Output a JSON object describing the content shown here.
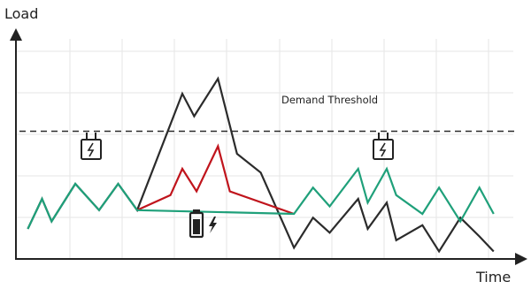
{
  "chart_data": {
    "type": "line",
    "xlabel": "Time",
    "ylabel": "Load",
    "annotations": {
      "threshold_label": "Demand Threshold"
    },
    "x": [
      0,
      1.2,
      2.5,
      4.8,
      6.5,
      8.0,
      9.5
    ],
    "series": [
      {
        "id": "grid_without_battery",
        "color": "#2b2b2b",
        "points": [
          [
            0,
            0.8
          ],
          [
            0.6,
            1.6
          ],
          [
            1.0,
            1.0
          ],
          [
            2.0,
            2.0
          ],
          [
            3.0,
            1.3
          ],
          [
            3.8,
            2.0
          ],
          [
            4.6,
            1.3
          ],
          [
            6.5,
            4.4
          ],
          [
            7.0,
            3.8
          ],
          [
            8.0,
            4.8
          ],
          [
            8.8,
            2.8
          ],
          [
            9.8,
            2.3
          ],
          [
            11.2,
            0.3
          ],
          [
            12.0,
            1.1
          ],
          [
            12.7,
            0.7
          ],
          [
            13.9,
            1.6
          ],
          [
            14.3,
            0.8
          ],
          [
            15.1,
            1.5
          ],
          [
            15.5,
            0.5
          ],
          [
            16.6,
            0.9
          ],
          [
            17.3,
            0.2
          ],
          [
            18.2,
            1.1
          ],
          [
            19.0,
            0.6
          ],
          [
            19.6,
            0.2
          ]
        ]
      },
      {
        "id": "grid_with_battery",
        "color": "#c0141c",
        "points": [
          [
            4.6,
            1.3
          ],
          [
            6.0,
            1.7
          ],
          [
            6.5,
            2.4
          ],
          [
            7.1,
            1.8
          ],
          [
            8.0,
            3.0
          ],
          [
            8.5,
            1.8
          ],
          [
            11.2,
            1.2
          ]
        ]
      },
      {
        "id": "battery_charging",
        "color": "#1fa07a",
        "points": [
          [
            0,
            0.8
          ],
          [
            0.6,
            1.6
          ],
          [
            1.0,
            1.0
          ],
          [
            2.0,
            2.0
          ],
          [
            3.0,
            1.3
          ],
          [
            3.8,
            2.0
          ],
          [
            4.6,
            1.3
          ],
          [
            11.2,
            1.2
          ],
          [
            12.0,
            1.9
          ],
          [
            12.7,
            1.4
          ],
          [
            13.9,
            2.4
          ],
          [
            14.3,
            1.5
          ],
          [
            15.1,
            2.4
          ],
          [
            15.5,
            1.7
          ],
          [
            16.6,
            1.2
          ],
          [
            17.3,
            1.9
          ],
          [
            18.2,
            1.0
          ],
          [
            19.0,
            1.9
          ],
          [
            19.6,
            1.2
          ]
        ]
      }
    ],
    "threshold": 3.4,
    "xlim": [
      -0.5,
      20.5
    ],
    "ylim": [
      0,
      6
    ],
    "grid": true,
    "icons": [
      "charging-station-icon",
      "battery-charging-icon",
      "charging-station-icon"
    ],
    "colors": {
      "axis": "#222222",
      "grid": "#e6e6e6",
      "threshold": "#2b2b2b"
    }
  }
}
